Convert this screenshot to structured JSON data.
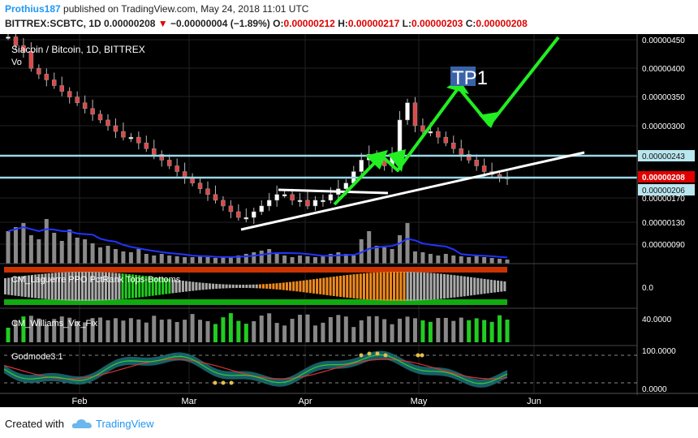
{
  "header": {
    "author": "Prothius187",
    "published": " published on TradingView.com, May 24, 2018 11:01 UTC",
    "symbol": "BITTREX:SCBTC, 1D",
    "last": "0.00000208",
    "arrow": "▼",
    "change": "−0.00000004 (−1.89%)",
    "o_label": "O:",
    "o_value": "0.00000212",
    "h_label": "H:",
    "h_value": "0.00000217",
    "l_label": "L:",
    "l_value": "0.00000203",
    "c_label": "C:",
    "c_value": "0.00000208"
  },
  "chart": {
    "title": "Siacoin / Bitcoin, 1D, BITTREX",
    "vol_label": "Vo",
    "annotation": "TP1",
    "price_ticks": [
      "0.00000450",
      "0.00000400",
      "0.00000350",
      "0.00000300",
      "0.00000170",
      "0.00000130",
      "0.00000090"
    ],
    "level_labels": [
      "0.00000243",
      "0.00000208",
      "0.00000206"
    ],
    "x_ticks": [
      "Feb",
      "Mar",
      "Apr",
      "May",
      "Jun"
    ],
    "indicators": [
      {
        "name": "CM_Laguerre PPO PctRank Tops-Bottoms",
        "scale": [
          "0.0"
        ]
      },
      {
        "name": "CM_Williams_Vix_Fix",
        "scale": [
          "40.0000"
        ]
      },
      {
        "name": "Godmode3.1",
        "scale": [
          "100.0000",
          "0.0000"
        ]
      }
    ]
  },
  "chart_data": {
    "type": "candlestick",
    "title": "Siacoin / Bitcoin, 1D, BITTREX",
    "y_ticks": [
      4.5e-06,
      4e-06,
      3.5e-06,
      3e-06,
      1.7e-06,
      1.3e-06,
      9e-07
    ],
    "x_ticks": [
      "Feb",
      "Mar",
      "Apr",
      "May",
      "Jun"
    ],
    "horizontal_levels": [
      2.43e-06,
      2.06e-06
    ],
    "current_price": 2.08e-06,
    "close_approx": [
      4.55e-06,
      4.4e-06,
      4.3e-06,
      4e-06,
      3.9e-06,
      3.8e-06,
      3.7e-06,
      3.6e-06,
      3.5e-06,
      3.4e-06,
      3.3e-06,
      3.2e-06,
      3.1e-06,
      3e-06,
      2.9e-06,
      2.8e-06,
      2.8e-06,
      2.7e-06,
      2.6e-06,
      2.5e-06,
      2.4e-06,
      2.3e-06,
      2.2e-06,
      2.1e-06,
      2e-06,
      1.9e-06,
      1.8e-06,
      1.7e-06,
      1.6e-06,
      1.5e-06,
      1.4e-06,
      1.4e-06,
      1.5e-06,
      1.6e-06,
      1.7e-06,
      1.8e-06,
      1.8e-06,
      1.7e-06,
      1.7e-06,
      1.6e-06,
      1.7e-06,
      1.7e-06,
      1.8e-06,
      1.9e-06,
      2e-06,
      2.2e-06,
      2.4e-06,
      2.5e-06,
      2.4e-06,
      2.3e-06,
      2.5e-06,
      3.1e-06,
      3.4e-06,
      3e-06,
      2.9e-06,
      2.9e-06,
      2.8e-06,
      2.7e-06,
      2.6e-06,
      2.5e-06,
      2.4e-06,
      2.3e-06,
      2.2e-06,
      2.15e-06,
      2.1e-06,
      2.08e-06
    ]
  }
}
